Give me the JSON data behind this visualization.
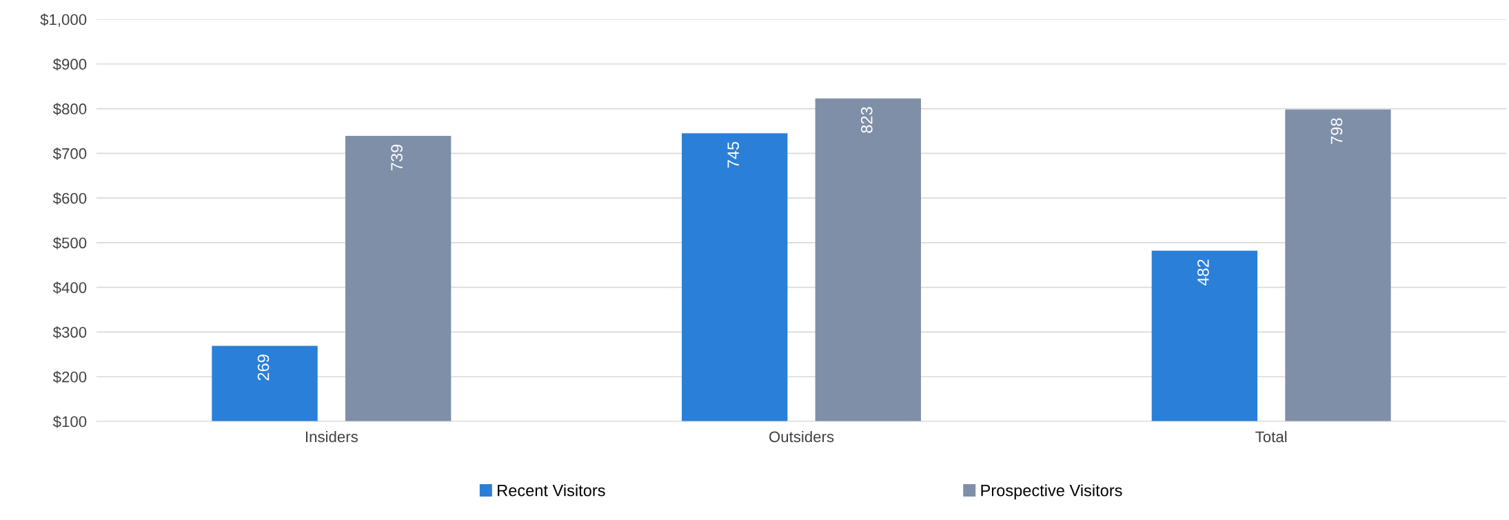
{
  "chart_data": {
    "type": "bar",
    "categories": [
      "Insiders",
      "Outsiders",
      "Total"
    ],
    "series": [
      {
        "name": "Recent Visitors",
        "color": "#2a7fd8",
        "values": [
          269,
          745,
          482
        ]
      },
      {
        "name": "Prospective Visitors",
        "color": "#7f8fa8",
        "values": [
          739,
          823,
          798
        ]
      }
    ],
    "data_labels": true,
    "ylim": [
      100,
      1000
    ],
    "yticks": [
      {
        "value": 100,
        "label": "$100"
      },
      {
        "value": 200,
        "label": "$200"
      },
      {
        "value": 300,
        "label": "$300"
      },
      {
        "value": 400,
        "label": "$400"
      },
      {
        "value": 500,
        "label": "$500"
      },
      {
        "value": 600,
        "label": "$600"
      },
      {
        "value": 700,
        "label": "$700"
      },
      {
        "value": 800,
        "label": "$800"
      },
      {
        "value": 900,
        "label": "$900"
      },
      {
        "value": 1000,
        "label": "$1,000"
      }
    ],
    "grid": "y",
    "legend": "bottom"
  }
}
